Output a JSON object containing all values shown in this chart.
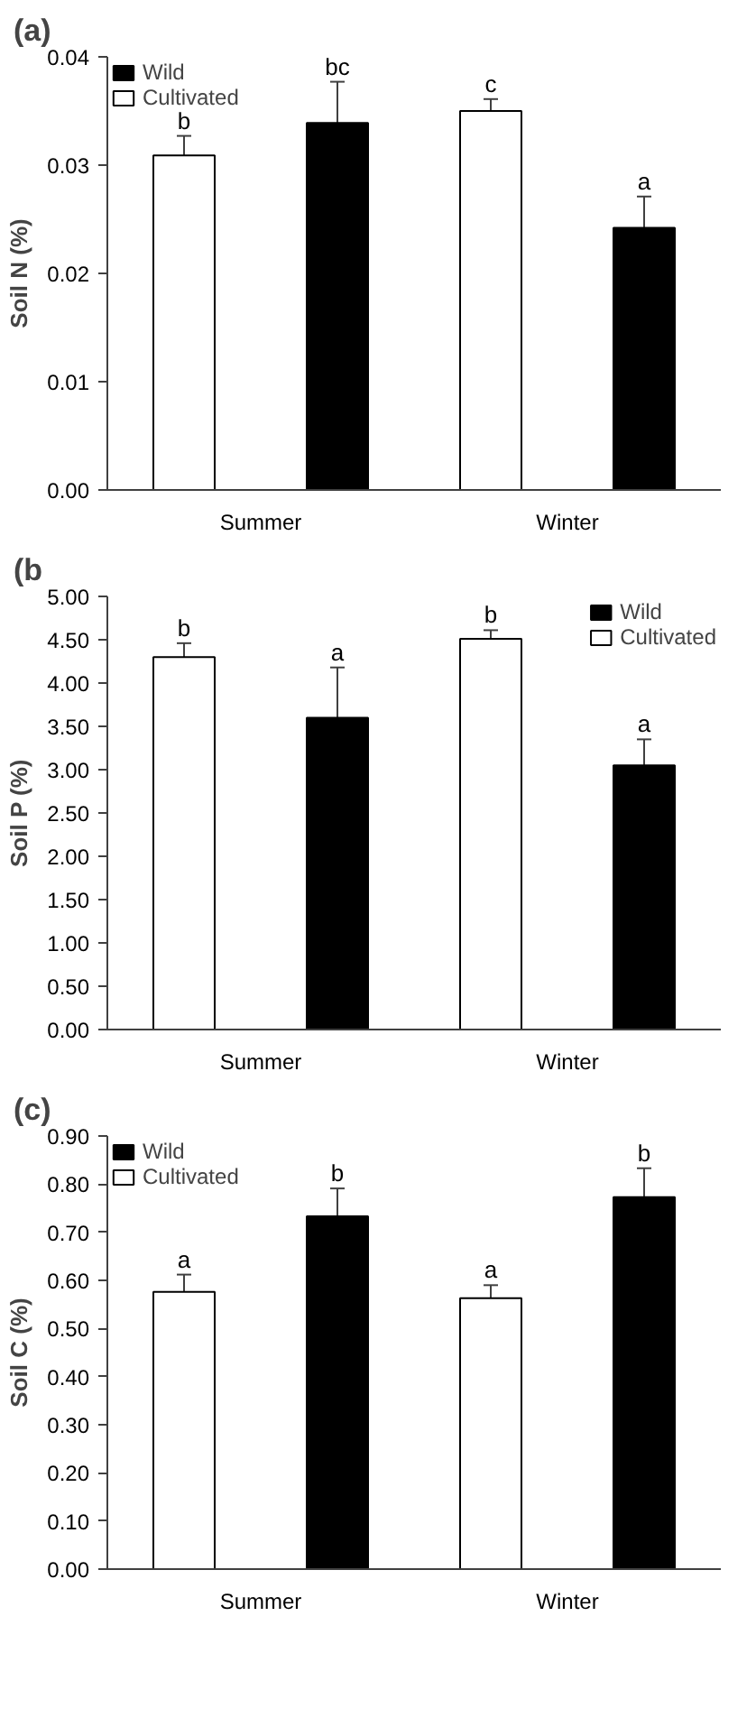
{
  "chart_data": [
    {
      "type": "bar",
      "title": "(a)",
      "ylabel": "Soil N (%)",
      "categories": [
        "Summer",
        "Winter"
      ],
      "series": [
        {
          "name": "Cultivated",
          "color": "#ffffff",
          "values": [
            0.0309,
            0.035
          ],
          "errors": [
            0.0018,
            0.0011
          ]
        },
        {
          "name": "Wild",
          "color": "#000000",
          "values": [
            0.0339,
            0.0242
          ],
          "errors": [
            0.0038,
            0.0029
          ]
        }
      ],
      "ylim": [
        0,
        0.04
      ],
      "yticks": [
        {
          "value": 0,
          "label": "0.00"
        },
        {
          "value": 0.01,
          "label": "0.01"
        },
        {
          "value": 0.02,
          "label": "0.02"
        },
        {
          "value": 0.03,
          "label": "0.03"
        },
        {
          "value": 0.04,
          "label": "0.04"
        }
      ],
      "annotations": [
        "b",
        "bc",
        "c",
        "a"
      ],
      "legend": "top left",
      "grid": false
    },
    {
      "type": "bar",
      "title": "(b",
      "ylabel": "Soil P (%)",
      "categories": [
        "Summer",
        "Winter"
      ],
      "series": [
        {
          "name": "Cultivated",
          "color": "#ffffff",
          "values": [
            4.3,
            4.51
          ],
          "errors": [
            0.16,
            0.1
          ]
        },
        {
          "name": "Wild",
          "color": "#000000",
          "values": [
            3.6,
            3.05
          ],
          "errors": [
            0.58,
            0.3
          ]
        }
      ],
      "ylim": [
        0,
        5
      ],
      "yticks": [
        {
          "value": 0,
          "label": "0.00"
        },
        {
          "value": 0.5,
          "label": "0.50"
        },
        {
          "value": 1,
          "label": "1.00"
        },
        {
          "value": 1.5,
          "label": "1.50"
        },
        {
          "value": 2,
          "label": "2.00"
        },
        {
          "value": 2.5,
          "label": "2.50"
        },
        {
          "value": 3,
          "label": "3.00"
        },
        {
          "value": 3.5,
          "label": "3.50"
        },
        {
          "value": 4,
          "label": "4.00"
        },
        {
          "value": 4.5,
          "label": "4.50"
        },
        {
          "value": 5,
          "label": "5.00"
        }
      ],
      "annotations": [
        "b",
        "a",
        "b",
        "a"
      ],
      "legend": "top right",
      "grid": false
    },
    {
      "type": "bar",
      "title": "(c)",
      "ylabel": "Soil C (%)",
      "categories": [
        "Summer",
        "Winter"
      ],
      "series": [
        {
          "name": "Cultivated",
          "color": "#ffffff",
          "values": [
            0.576,
            0.563
          ],
          "errors": [
            0.036,
            0.027
          ]
        },
        {
          "name": "Wild",
          "color": "#000000",
          "values": [
            0.733,
            0.773
          ],
          "errors": [
            0.058,
            0.06
          ]
        }
      ],
      "ylim": [
        0,
        0.9
      ],
      "yticks": [
        {
          "value": 0,
          "label": "0.00"
        },
        {
          "value": 0.1,
          "label": "0.10"
        },
        {
          "value": 0.2,
          "label": "0.20"
        },
        {
          "value": 0.3,
          "label": "0.30"
        },
        {
          "value": 0.4,
          "label": "0.40"
        },
        {
          "value": 0.5,
          "label": "0.50"
        },
        {
          "value": 0.6,
          "label": "0.60"
        },
        {
          "value": 0.7,
          "label": "0.70"
        },
        {
          "value": 0.8,
          "label": "0.80"
        },
        {
          "value": 0.9,
          "label": "0.90"
        }
      ],
      "annotations": [
        "a",
        "b",
        "a",
        "b"
      ],
      "legend": "top left",
      "grid": false
    }
  ]
}
